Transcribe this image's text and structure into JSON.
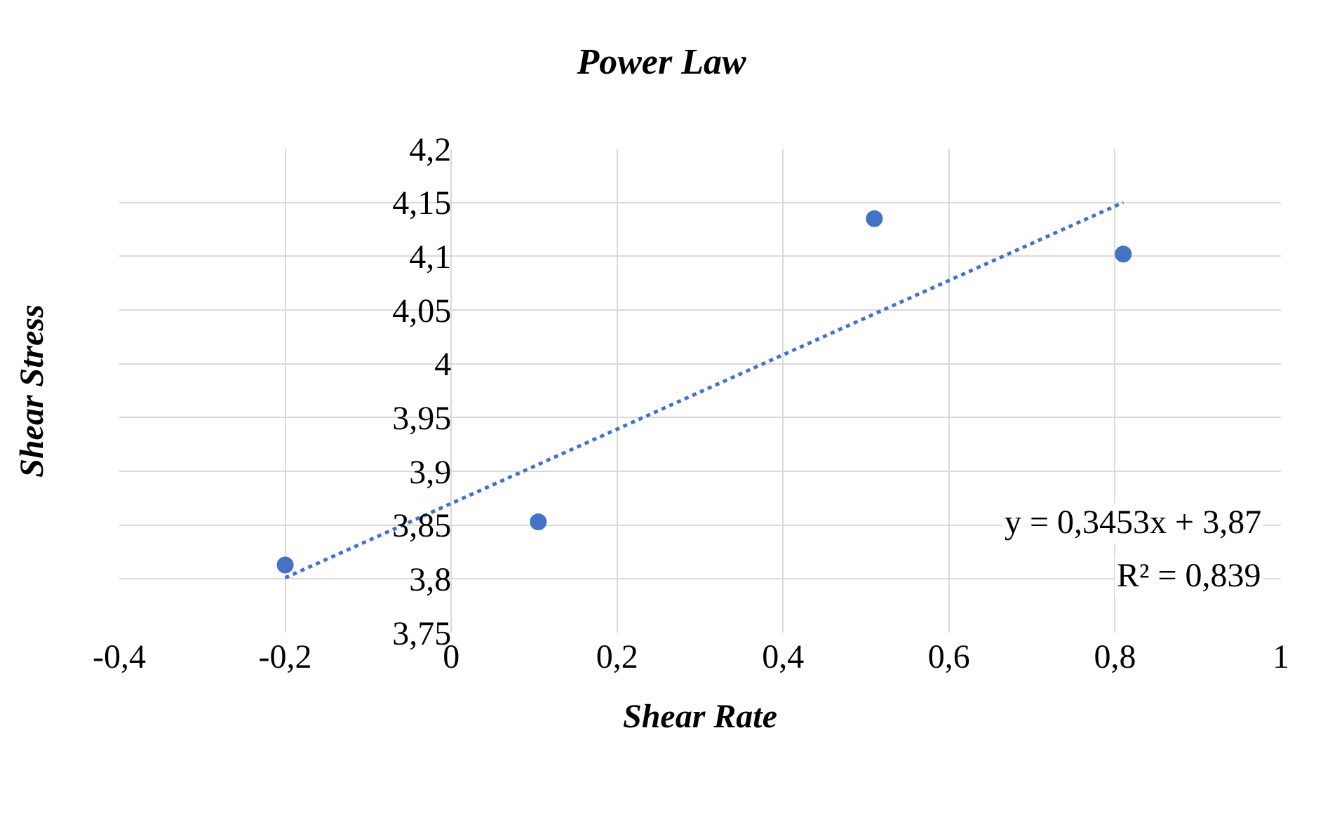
{
  "chart_data": {
    "type": "scatter",
    "title": "Power Law",
    "xlabel": "Shear Rate",
    "ylabel": "Shear Stress",
    "xlim": [
      -0.4,
      1
    ],
    "xticks": [
      {
        "value": -0.4,
        "label": "-0,4"
      },
      {
        "value": -0.2,
        "label": "-0,2"
      },
      {
        "value": 0,
        "label": "0"
      },
      {
        "value": 0.2,
        "label": "0,2"
      },
      {
        "value": 0.4,
        "label": "0,4"
      },
      {
        "value": 0.6,
        "label": "0,6"
      },
      {
        "value": 0.8,
        "label": "0,8"
      },
      {
        "value": 1,
        "label": "1"
      }
    ],
    "ylim": [
      3.75,
      4.2
    ],
    "yticks": [
      {
        "value": 3.75,
        "label": "3,75"
      },
      {
        "value": 3.8,
        "label": "3,8"
      },
      {
        "value": 3.85,
        "label": "3,85"
      },
      {
        "value": 3.9,
        "label": "3,9"
      },
      {
        "value": 3.95,
        "label": "3,95"
      },
      {
        "value": 4,
        "label": "4"
      },
      {
        "value": 4.05,
        "label": "4,05"
      },
      {
        "value": 4.1,
        "label": "4,1"
      },
      {
        "value": 4.15,
        "label": "4,15"
      },
      {
        "value": 4.2,
        "label": "4,2"
      }
    ],
    "grid": true,
    "series": [
      {
        "marker": "circle",
        "color": "#4472c4",
        "x": [
          -0.2,
          0.105,
          0.51,
          0.81
        ],
        "values": [
          3.813,
          3.853,
          4.135,
          4.102
        ]
      },
      {
        "type": "line",
        "marker": "none",
        "line_style": "dotted",
        "color": "#4472c4",
        "x": [
          -0.2,
          0.81
        ],
        "values": [
          3.801,
          4.15
        ]
      }
    ],
    "annotations": [
      "y = 0,3453x + 3,87",
      "R² = 0,839"
    ]
  }
}
